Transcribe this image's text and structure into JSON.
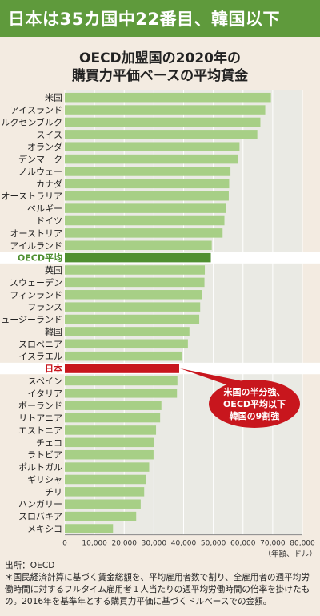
{
  "headline": "日本は35カ国中22番目、韓国以下",
  "title_line1": "OECD加盟国の2020年の",
  "title_line2": "購買力平価ベースの平均賃金",
  "callout": {
    "line1": "米国の半分強、",
    "line2": "OECD平均以下",
    "line3": "韓国の9割強"
  },
  "source": "出所：OECD",
  "note": "＊国民経済計算に基づく賃金総額を、平均雇用者数で割り、全雇用者の週平均労働時間に対するフルタイム雇用者１人当たりの週平均労働時間の倍率を掛けたもの。2016年を基準年とする購買力平価に基づくドルベースでの金額。",
  "colors": {
    "headline_bg": "#5f9a3c",
    "bar": "#a7cf86",
    "oecd_bar": "#4f8f30",
    "oecd_label": "#4f8f30",
    "japan_bar": "#c8161d",
    "japan_label": "#c8161d",
    "callout_bg": "#c8161d"
  },
  "chart_data": {
    "type": "bar",
    "orientation": "horizontal",
    "categories": [
      "米国",
      "アイスランド",
      "ルクセンブルク",
      "スイス",
      "オランダ",
      "デンマーク",
      "ノルウェー",
      "カナダ",
      "オーストラリア",
      "ベルギー",
      "ドイツ",
      "オーストリア",
      "アイルランド",
      "OECD平均",
      "英国",
      "スウェーデン",
      "フィンランド",
      "フランス",
      "ニュージーランド",
      "韓国",
      "スロベニア",
      "イスラエル",
      "日本",
      "スペイン",
      "イタリア",
      "ポーランド",
      "リトアニア",
      "エストニア",
      "チェコ",
      "ラトビア",
      "ポルトガル",
      "ギリシャ",
      "チリ",
      "ハンガリー",
      "スロバキア",
      "メキシコ"
    ],
    "values": [
      69392,
      67488,
      65854,
      64824,
      58828,
      58430,
      55780,
      55342,
      55206,
      54327,
      53745,
      53132,
      49474,
      49165,
      47147,
      47020,
      46230,
      45581,
      45269,
      41960,
      41445,
      39322,
      38515,
      37922,
      37769,
      32527,
      32093,
      30720,
      29993,
      29876,
      28410,
      27207,
      26729,
      25551,
      24036,
      16230
    ],
    "highlights": {
      "OECD平均": "oecd",
      "日本": "japan"
    },
    "xlim": [
      0,
      80000
    ],
    "xticks": [
      0,
      10000,
      20000,
      30000,
      40000,
      50000,
      60000,
      70000,
      80000
    ],
    "xtick_labels": [
      "0",
      "10,000",
      "20,000",
      "30,000",
      "40,000",
      "50,000",
      "60,000",
      "70,000",
      "80,000"
    ],
    "xlabel": "（年額、ドル）",
    "grid": true
  }
}
